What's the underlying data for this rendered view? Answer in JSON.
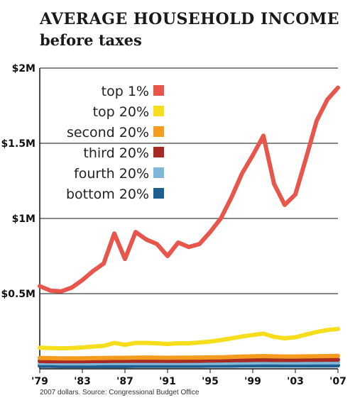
{
  "title": "AVERAGE HOUSEHOLD INCOME",
  "subtitle": "before taxes",
  "source": "2007 dollars. Source: Congressional Budget Office",
  "chart_data": {
    "type": "line",
    "x": [
      1979,
      1980,
      1981,
      1982,
      1983,
      1984,
      1985,
      1986,
      1987,
      1988,
      1989,
      1990,
      1991,
      1992,
      1993,
      1994,
      1995,
      1996,
      1997,
      1998,
      1999,
      2000,
      2001,
      2002,
      2003,
      2004,
      2005,
      2006,
      2007
    ],
    "xlim": [
      1979,
      2007
    ],
    "ylim": [
      0,
      2000000
    ],
    "y_ticks": [
      {
        "value": 500000,
        "label": "$0.5M"
      },
      {
        "value": 1000000,
        "label": "$1M"
      },
      {
        "value": 1500000,
        "label": "$1.5M"
      },
      {
        "value": 2000000,
        "label": "$2M"
      }
    ],
    "x_ticks": [
      {
        "value": 1979,
        "label": "'79"
      },
      {
        "value": 1983,
        "label": "'83"
      },
      {
        "value": 1987,
        "label": "'87"
      },
      {
        "value": 1991,
        "label": "'91"
      },
      {
        "value": 1995,
        "label": "'95"
      },
      {
        "value": 1999,
        "label": "'99"
      },
      {
        "value": 2003,
        "label": "'03"
      },
      {
        "value": 2007,
        "label": "'07"
      }
    ],
    "grid": "horizontal",
    "legend_position": "upper-left",
    "series": [
      {
        "name": "top 1%",
        "color": "#e8554a",
        "values": [
          550000,
          520000,
          515000,
          540000,
          590000,
          650000,
          700000,
          900000,
          730000,
          910000,
          860000,
          830000,
          750000,
          840000,
          810000,
          830000,
          910000,
          1000000,
          1140000,
          1300000,
          1420000,
          1550000,
          1230000,
          1090000,
          1160000,
          1400000,
          1650000,
          1790000,
          1870000
        ]
      },
      {
        "name": "top 20%",
        "color": "#f6de1c",
        "values": [
          140000,
          138000,
          137000,
          138000,
          142000,
          148000,
          153000,
          172000,
          160000,
          172000,
          172000,
          170000,
          165000,
          170000,
          170000,
          175000,
          181000,
          191000,
          203000,
          215000,
          225000,
          234000,
          213000,
          203000,
          210000,
          228000,
          245000,
          258000,
          265000
        ]
      },
      {
        "name": "second 20%",
        "color": "#f39c1f",
        "values": [
          72000,
          71000,
          70000,
          70000,
          70000,
          71000,
          72000,
          73000,
          73000,
          74000,
          75000,
          74000,
          73000,
          74000,
          74000,
          75000,
          76000,
          77000,
          79000,
          81000,
          83000,
          85000,
          83000,
          82000,
          82000,
          83000,
          84000,
          85000,
          86000
        ]
      },
      {
        "name": "third 20%",
        "color": "#a72a24",
        "values": [
          52000,
          51000,
          51000,
          51000,
          51000,
          52000,
          52000,
          53000,
          53000,
          54000,
          54000,
          54000,
          53000,
          53000,
          54000,
          54000,
          55000,
          56000,
          57000,
          58000,
          59000,
          60000,
          59000,
          59000,
          59000,
          60000,
          60000,
          61000,
          61000
        ]
      },
      {
        "name": "fourth 20%",
        "color": "#7fb7d9",
        "values": [
          38000,
          38000,
          37000,
          37000,
          37000,
          37000,
          38000,
          38000,
          38000,
          38000,
          38000,
          38000,
          38000,
          38000,
          38000,
          38000,
          39000,
          39000,
          40000,
          41000,
          42000,
          43000,
          43000,
          42000,
          42000,
          42000,
          43000,
          43000,
          43000
        ]
      },
      {
        "name": "bottom 20%",
        "color": "#1f5f8f",
        "values": [
          20000,
          20000,
          19000,
          19000,
          19000,
          19000,
          19000,
          19000,
          19000,
          20000,
          20000,
          20000,
          20000,
          20000,
          20000,
          20000,
          21000,
          21000,
          21000,
          22000,
          22000,
          22000,
          22000,
          22000,
          22000,
          22000,
          22000,
          22000,
          23000
        ]
      }
    ]
  }
}
